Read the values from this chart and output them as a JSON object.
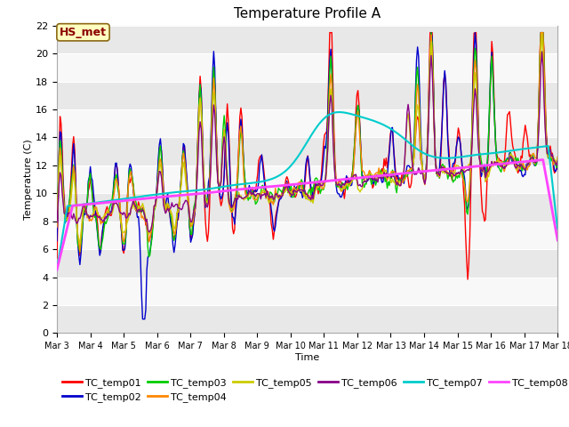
{
  "title": "Temperature Profile A",
  "xlabel": "Time",
  "ylabel": "Temperature (C)",
  "ylim": [
    0,
    22
  ],
  "annotation_text": "HS_met",
  "annotation_color": "#8B0000",
  "annotation_bg": "#FFFFC0",
  "bg_color": "#FFFFFF",
  "plot_bg": "#FFFFFF",
  "grid_color": "#D8D8D8",
  "series_colors": {
    "TC_temp01": "#FF0000",
    "TC_temp02": "#0000CC",
    "TC_temp03": "#00CC00",
    "TC_temp04": "#FF8800",
    "TC_temp05": "#CCCC00",
    "TC_temp06": "#880088",
    "TC_temp07": "#00CCCC",
    "TC_temp08": "#FF44FF"
  },
  "n_points": 480,
  "x_start": 3,
  "x_end": 18,
  "xtick_labels": [
    "Mar 3",
    "Mar 4",
    "Mar 5",
    "Mar 6",
    "Mar 7",
    "Mar 8",
    "Mar 9",
    "Mar 10",
    "Mar 11",
    "Mar 12",
    "Mar 13",
    "Mar 14",
    "Mar 15",
    "Mar 16",
    "Mar 17",
    "Mar 18"
  ],
  "xtick_positions": [
    3,
    4,
    5,
    6,
    7,
    8,
    9,
    10,
    11,
    12,
    13,
    14,
    15,
    16,
    17,
    18
  ],
  "ytick_positions": [
    0,
    2,
    4,
    6,
    8,
    10,
    12,
    14,
    16,
    18,
    20,
    22
  ]
}
